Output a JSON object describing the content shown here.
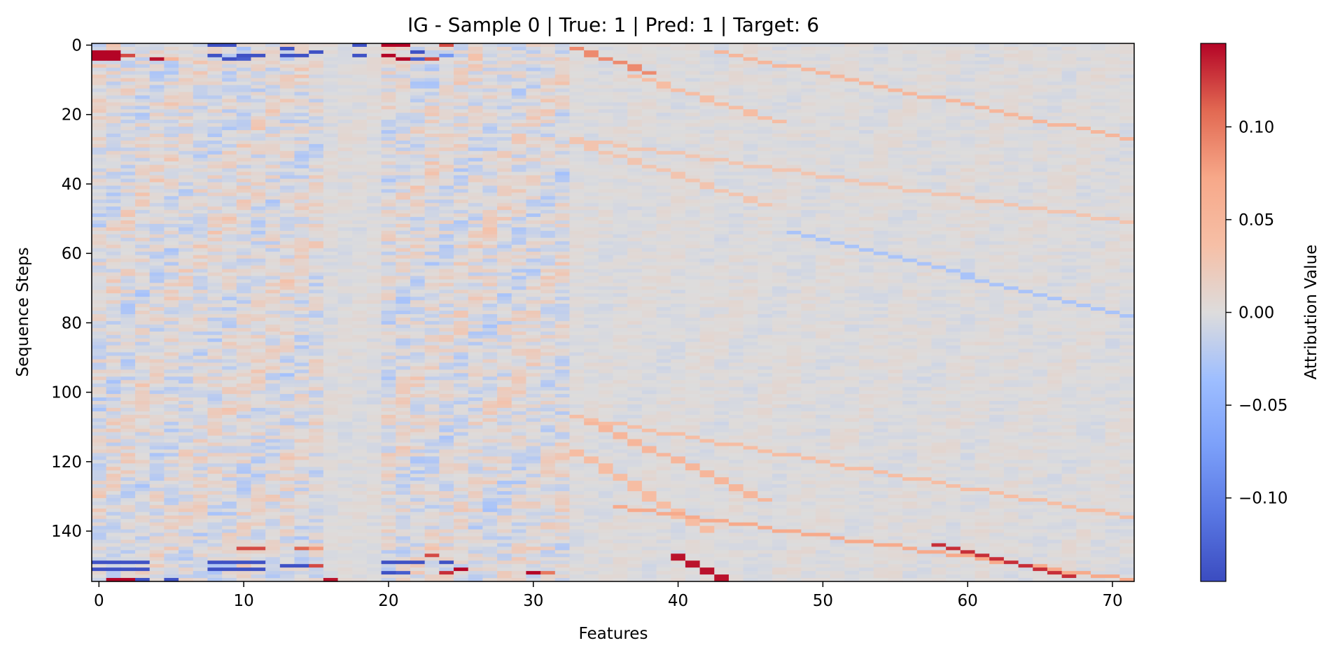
{
  "chart_data": {
    "type": "heatmap",
    "title": "IG - Sample 0 | True: 1 | Pred: 1 | Target: 6",
    "xlabel": "Features",
    "ylabel": "Sequence Steps",
    "colorbar_label": "Attribution Value",
    "n_features": 72,
    "n_steps": 155,
    "xlim": [
      -0.5,
      71.5
    ],
    "ylim": [
      154.5,
      -0.5
    ],
    "x_ticks": [
      0,
      10,
      20,
      30,
      40,
      50,
      60,
      70
    ],
    "x_tick_labels": [
      "0",
      "10",
      "20",
      "30",
      "40",
      "50",
      "60",
      "70"
    ],
    "y_ticks": [
      0,
      20,
      40,
      60,
      80,
      100,
      120,
      140
    ],
    "y_tick_labels": [
      "0",
      "20",
      "40",
      "60",
      "80",
      "100",
      "120",
      "140"
    ],
    "color_range": [
      -0.145,
      0.145
    ],
    "colorbar_ticks": [
      0.1,
      0.05,
      0.0,
      -0.05,
      -0.1
    ],
    "colorbar_tick_labels": [
      "0.10",
      "0.05",
      "0.00",
      "−0.05",
      "−0.10"
    ],
    "colormap": "coolwarm",
    "cells": [
      {
        "x": 0,
        "y": 2,
        "v": 0.15
      },
      {
        "x": 0,
        "y": 3,
        "v": 0.15
      },
      {
        "x": 0,
        "y": 4,
        "v": 0.15
      },
      {
        "x": 1,
        "y": 2,
        "v": 0.15
      },
      {
        "x": 1,
        "y": 3,
        "v": 0.15
      },
      {
        "x": 1,
        "y": 4,
        "v": 0.15
      },
      {
        "x": 2,
        "y": 3,
        "v": 0.12
      },
      {
        "x": 4,
        "y": 4,
        "v": 0.14
      },
      {
        "x": 5,
        "y": 4,
        "v": 0.05
      },
      {
        "x": 8,
        "y": 0,
        "v": -0.14
      },
      {
        "x": 9,
        "y": 0,
        "v": -0.14
      },
      {
        "x": 8,
        "y": 3,
        "v": -0.14
      },
      {
        "x": 9,
        "y": 4,
        "v": -0.14
      },
      {
        "x": 10,
        "y": 3,
        "v": -0.14
      },
      {
        "x": 11,
        "y": 3,
        "v": -0.14
      },
      {
        "x": 10,
        "y": 4,
        "v": -0.13
      },
      {
        "x": 13,
        "y": 1,
        "v": -0.14
      },
      {
        "x": 13,
        "y": 3,
        "v": -0.14
      },
      {
        "x": 14,
        "y": 3,
        "v": -0.14
      },
      {
        "x": 15,
        "y": 2,
        "v": -0.14
      },
      {
        "x": 18,
        "y": 0,
        "v": -0.14
      },
      {
        "x": 18,
        "y": 3,
        "v": -0.14
      },
      {
        "x": 20,
        "y": 0,
        "v": 0.15
      },
      {
        "x": 21,
        "y": 0,
        "v": 0.15
      },
      {
        "x": 20,
        "y": 3,
        "v": 0.15
      },
      {
        "x": 21,
        "y": 4,
        "v": 0.15
      },
      {
        "x": 22,
        "y": 2,
        "v": -0.14
      },
      {
        "x": 22,
        "y": 4,
        "v": -0.13
      },
      {
        "x": 23,
        "y": 4,
        "v": 0.12
      },
      {
        "x": 24,
        "y": 0,
        "v": 0.12
      },
      {
        "x": 24,
        "y": 3,
        "v": -0.08
      },
      {
        "x": 0,
        "y": 149,
        "v": -0.14
      },
      {
        "x": 1,
        "y": 149,
        "v": -0.14
      },
      {
        "x": 2,
        "y": 149,
        "v": -0.14
      },
      {
        "x": 3,
        "y": 149,
        "v": -0.14
      },
      {
        "x": 0,
        "y": 151,
        "v": -0.14
      },
      {
        "x": 1,
        "y": 151,
        "v": -0.14
      },
      {
        "x": 2,
        "y": 151,
        "v": -0.14
      },
      {
        "x": 3,
        "y": 151,
        "v": -0.14
      },
      {
        "x": 1,
        "y": 154,
        "v": 0.15
      },
      {
        "x": 2,
        "y": 154,
        "v": 0.15
      },
      {
        "x": 3,
        "y": 154,
        "v": -0.14
      },
      {
        "x": 5,
        "y": 154,
        "v": -0.14
      },
      {
        "x": 8,
        "y": 149,
        "v": -0.14
      },
      {
        "x": 9,
        "y": 149,
        "v": -0.14
      },
      {
        "x": 10,
        "y": 149,
        "v": -0.14
      },
      {
        "x": 11,
        "y": 149,
        "v": -0.14
      },
      {
        "x": 8,
        "y": 151,
        "v": -0.14
      },
      {
        "x": 9,
        "y": 151,
        "v": -0.14
      },
      {
        "x": 10,
        "y": 151,
        "v": -0.14
      },
      {
        "x": 11,
        "y": 151,
        "v": -0.14
      },
      {
        "x": 10,
        "y": 145,
        "v": 0.12
      },
      {
        "x": 11,
        "y": 145,
        "v": 0.12
      },
      {
        "x": 14,
        "y": 145,
        "v": 0.11
      },
      {
        "x": 15,
        "y": 145,
        "v": 0.08
      },
      {
        "x": 13,
        "y": 150,
        "v": -0.14
      },
      {
        "x": 14,
        "y": 150,
        "v": -0.14
      },
      {
        "x": 15,
        "y": 150,
        "v": 0.12
      },
      {
        "x": 16,
        "y": 154,
        "v": 0.14
      },
      {
        "x": 20,
        "y": 149,
        "v": -0.14
      },
      {
        "x": 21,
        "y": 149,
        "v": -0.14
      },
      {
        "x": 22,
        "y": 149,
        "v": -0.14
      },
      {
        "x": 20,
        "y": 152,
        "v": -0.14
      },
      {
        "x": 21,
        "y": 152,
        "v": -0.13
      },
      {
        "x": 23,
        "y": 147,
        "v": 0.12
      },
      {
        "x": 24,
        "y": 149,
        "v": -0.14
      },
      {
        "x": 24,
        "y": 152,
        "v": 0.13
      },
      {
        "x": 25,
        "y": 151,
        "v": 0.15
      },
      {
        "x": 30,
        "y": 152,
        "v": 0.15
      },
      {
        "x": 31,
        "y": 152,
        "v": 0.1
      }
    ],
    "diagonal_lines": [
      {
        "x_start": 33,
        "y_start": 1,
        "x_end": 38,
        "y_end": 8,
        "v": 0.09
      },
      {
        "x_start": 43,
        "y_start": 2,
        "x_end": 71,
        "y_end": 27,
        "v": 0.05
      },
      {
        "x_start": 37,
        "y_start": 9,
        "x_end": 47,
        "y_end": 22,
        "v": 0.04
      },
      {
        "x_start": 33,
        "y_start": 27,
        "x_end": 71,
        "y_end": 51,
        "v": 0.03
      },
      {
        "x_start": 33,
        "y_start": 28,
        "x_end": 46,
        "y_end": 46,
        "v": 0.03
      },
      {
        "x_start": 48,
        "y_start": 54,
        "x_end": 71,
        "y_end": 78,
        "v": -0.03
      },
      {
        "x_start": 33,
        "y_start": 107,
        "x_end": 46,
        "y_end": 131,
        "v": 0.05
      },
      {
        "x_start": 33,
        "y_start": 107,
        "x_end": 71,
        "y_end": 136,
        "v": 0.04
      },
      {
        "x_start": 33,
        "y_start": 117,
        "x_end": 42,
        "y_end": 140,
        "v": 0.04
      },
      {
        "x_start": 36,
        "y_start": 133,
        "x_end": 71,
        "y_end": 154,
        "v": 0.07
      },
      {
        "x_start": 40,
        "y_start": 147,
        "x_end": 43,
        "y_end": 154,
        "v": 0.14
      },
      {
        "x_start": 58,
        "y_start": 144,
        "x_end": 67,
        "y_end": 153,
        "v": 0.13
      }
    ]
  }
}
